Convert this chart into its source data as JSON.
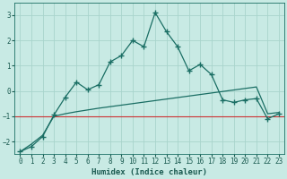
{
  "xlabel": "Humidex (Indice chaleur)",
  "ylabel": "",
  "background_color": "#c8eae4",
  "grid_color": "#a8d4cc",
  "line_color": "#1a6e64",
  "xlim": [
    -0.5,
    23.5
  ],
  "ylim": [
    -2.5,
    3.5
  ],
  "yticks": [
    -2,
    -1,
    0,
    1,
    2,
    3
  ],
  "xticks": [
    0,
    1,
    2,
    3,
    4,
    5,
    6,
    7,
    8,
    9,
    10,
    11,
    12,
    13,
    14,
    15,
    16,
    17,
    18,
    19,
    20,
    21,
    22,
    23
  ],
  "line1_x": [
    0,
    1,
    2,
    3,
    4,
    5,
    6,
    7,
    8,
    9,
    10,
    11,
    12,
    13,
    14,
    15,
    16,
    17,
    18,
    19,
    20,
    21,
    22,
    23
  ],
  "line1_y": [
    -2.4,
    -2.2,
    -1.8,
    -0.95,
    -0.25,
    0.35,
    0.05,
    0.25,
    1.15,
    1.4,
    2.0,
    1.75,
    3.1,
    2.35,
    1.75,
    0.8,
    1.05,
    0.65,
    -0.35,
    -0.45,
    -0.35,
    -0.3,
    -1.1,
    -0.9
  ],
  "line2_x": [
    0,
    1,
    2,
    3,
    4,
    5,
    6,
    7,
    8,
    9,
    10,
    11,
    12,
    13,
    14,
    15,
    16,
    17,
    18,
    19,
    20,
    21,
    22,
    23
  ],
  "line2_y": [
    -2.4,
    -2.1,
    -1.75,
    -1.0,
    -0.9,
    -0.82,
    -0.75,
    -0.68,
    -0.62,
    -0.56,
    -0.5,
    -0.44,
    -0.38,
    -0.32,
    -0.26,
    -0.2,
    -0.14,
    -0.08,
    -0.02,
    0.04,
    0.1,
    0.16,
    -0.9,
    -0.85
  ],
  "hline_y": -1.0,
  "hline_color": "#cc3333",
  "font_color": "#1a5a50",
  "tick_fontsize": 5.5,
  "xlabel_fontsize": 6.5
}
